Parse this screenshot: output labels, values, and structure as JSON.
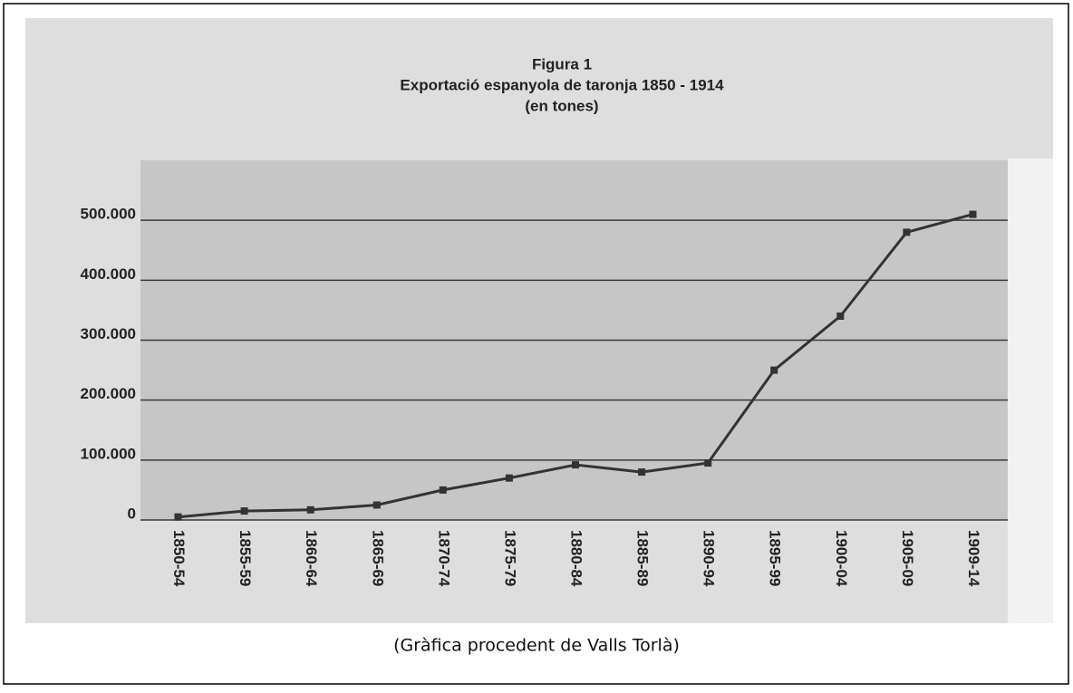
{
  "chart_data": {
    "type": "line",
    "title": "Figura 1",
    "subtitle": "Exportació espanyola de taronja 1850 - 1914",
    "unit_note": "(en tones)",
    "categories": [
      "1850-54",
      "1855-59",
      "1860-64",
      "1865-69",
      "1870-74",
      "1875-79",
      "1880-84",
      "1885-89",
      "1890-94",
      "1895-99",
      "1900-04",
      "1905-09",
      "1909-14"
    ],
    "values": [
      5000,
      15000,
      17000,
      25000,
      50000,
      70000,
      92000,
      80000,
      95000,
      250000,
      340000,
      480000,
      510000
    ],
    "color": "#333333",
    "ylim": [
      0,
      600000
    ],
    "yticks": [
      0,
      {
        "value": 100000,
        "label": "100.000"
      },
      {
        "value": 200000,
        "label": "200.000"
      },
      {
        "value": 300000,
        "label": "300.000"
      },
      {
        "value": 400000,
        "label": "400.000"
      },
      {
        "value": 500000,
        "label": "500.000"
      }
    ],
    "grid": true
  },
  "caption": "(Gràfica procedent de Valls Torlà)"
}
